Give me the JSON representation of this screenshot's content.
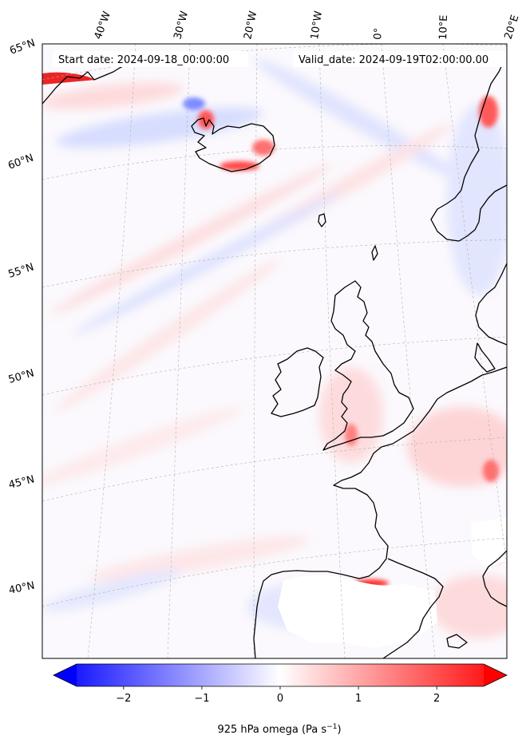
{
  "header": {
    "start_date": "Start date: 2024-09-18_00:00:00",
    "valid_date": "Valid_date: 2024-09-19T02:00:00.00"
  },
  "lon_labels": [
    "40°W",
    "30°W",
    "20°W",
    "10°W",
    "0°",
    "10°E",
    "20°E"
  ],
  "lat_labels": [
    "65°N",
    "60°N",
    "55°N",
    "50°N",
    "45°N",
    "40°N"
  ],
  "colorbar": {
    "label": "925 hPa omega (Pa s",
    "label_sup": "−1",
    "label_end": ")",
    "ticks": [
      "−2",
      "−1",
      "0",
      "1",
      "2"
    ],
    "tick_values": [
      -2,
      -1,
      0,
      1,
      2
    ],
    "range": [
      -2.6,
      2.6
    ],
    "levels": 52,
    "extend": "both",
    "colormap": "bwr",
    "color_min": "#0000ff",
    "color_mid": "#ffffff",
    "color_max": "#ff0000"
  },
  "map": {
    "projection": "lambert-conformal",
    "coastline_color": "#000000",
    "gridline_color": "#b0b0b0",
    "missing_color": "#ffffff"
  }
}
